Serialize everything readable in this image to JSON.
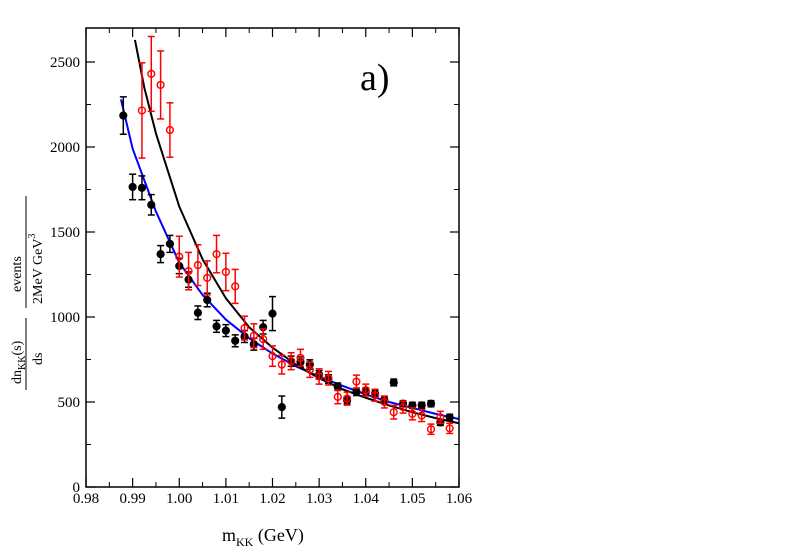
{
  "chart_data": {
    "type": "scatter",
    "title": "",
    "panel_label": "a)",
    "xlabel": {
      "main": "m",
      "sub": "KK",
      "unit": " (GeV)"
    },
    "ylabel": {
      "left_num": "dn",
      "left_num_sub": "KK",
      "left_num_tail": "(s)",
      "left_den": "ds",
      "right_num": "events",
      "right_den": "2MeV GeV",
      "right_den_sup": "3"
    },
    "xlim": [
      0.98,
      1.06
    ],
    "ylim": [
      0,
      2700
    ],
    "x_ticks": [
      0.98,
      0.99,
      1.0,
      1.01,
      1.02,
      1.03,
      1.04,
      1.05,
      1.06
    ],
    "x_tick_labels": [
      "0.98",
      "0.99",
      "1.00",
      "1.01",
      "1.02",
      "1.03",
      "1.04",
      "1.05",
      "1.06"
    ],
    "y_ticks": [
      0,
      500,
      1000,
      1500,
      2000,
      2500
    ],
    "y_tick_labels": [
      "0",
      "500",
      "1000",
      "1500",
      "2000",
      "2500"
    ],
    "grid": false,
    "series": [
      {
        "name": "black data",
        "kind": "points",
        "marker": "filled-circle",
        "color": "#000000",
        "points": [
          [
            0.988,
            2185,
            110
          ],
          [
            0.99,
            1765,
            75
          ],
          [
            0.992,
            1760,
            70
          ],
          [
            0.994,
            1660,
            60
          ],
          [
            0.996,
            1370,
            50
          ],
          [
            0.998,
            1430,
            50
          ],
          [
            1.0,
            1300,
            45
          ],
          [
            1.002,
            1220,
            45
          ],
          [
            1.004,
            1025,
            40
          ],
          [
            1.006,
            1100,
            40
          ],
          [
            1.008,
            945,
            35
          ],
          [
            1.01,
            920,
            35
          ],
          [
            1.012,
            860,
            35
          ],
          [
            1.014,
            885,
            35
          ],
          [
            1.016,
            840,
            35
          ],
          [
            1.018,
            940,
            40
          ],
          [
            1.02,
            1020,
            100
          ],
          [
            1.022,
            470,
            65
          ],
          [
            1.024,
            740,
            30
          ],
          [
            1.026,
            735,
            30
          ],
          [
            1.028,
            720,
            28
          ],
          [
            1.03,
            660,
            25
          ],
          [
            1.032,
            635,
            25
          ],
          [
            1.034,
            590,
            22
          ],
          [
            1.036,
            510,
            22
          ],
          [
            1.038,
            560,
            22
          ],
          [
            1.04,
            560,
            22
          ],
          [
            1.042,
            550,
            22
          ],
          [
            1.044,
            510,
            20
          ],
          [
            1.046,
            615,
            20
          ],
          [
            1.048,
            490,
            18
          ],
          [
            1.05,
            480,
            18
          ],
          [
            1.052,
            480,
            18
          ],
          [
            1.054,
            490,
            18
          ],
          [
            1.056,
            380,
            18
          ],
          [
            1.058,
            410,
            18
          ]
        ]
      },
      {
        "name": "red data",
        "kind": "points",
        "marker": "open-circle",
        "color": "#ff0000",
        "points": [
          [
            0.992,
            2215,
            280
          ],
          [
            0.994,
            2430,
            220
          ],
          [
            0.996,
            2365,
            200
          ],
          [
            0.998,
            2100,
            160
          ],
          [
            1.0,
            1355,
            120
          ],
          [
            1.002,
            1270,
            110
          ],
          [
            1.004,
            1305,
            120
          ],
          [
            1.006,
            1230,
            100
          ],
          [
            1.008,
            1370,
            110
          ],
          [
            1.01,
            1265,
            110
          ],
          [
            1.012,
            1180,
            100
          ],
          [
            1.014,
            935,
            70
          ],
          [
            1.016,
            890,
            70
          ],
          [
            1.018,
            870,
            60
          ],
          [
            1.02,
            770,
            60
          ],
          [
            1.022,
            720,
            55
          ],
          [
            1.024,
            740,
            50
          ],
          [
            1.026,
            760,
            50
          ],
          [
            1.028,
            690,
            45
          ],
          [
            1.03,
            650,
            45
          ],
          [
            1.032,
            640,
            40
          ],
          [
            1.034,
            530,
            40
          ],
          [
            1.036,
            520,
            38
          ],
          [
            1.038,
            620,
            38
          ],
          [
            1.04,
            570,
            35
          ],
          [
            1.042,
            540,
            35
          ],
          [
            1.044,
            500,
            35
          ],
          [
            1.046,
            440,
            40
          ],
          [
            1.048,
            470,
            35
          ],
          [
            1.05,
            430,
            35
          ],
          [
            1.052,
            420,
            35
          ],
          [
            1.054,
            340,
            30
          ],
          [
            1.056,
            410,
            35
          ],
          [
            1.058,
            345,
            30
          ]
        ]
      },
      {
        "name": "blue fit",
        "kind": "line",
        "color": "#0000ff",
        "points": [
          [
            0.9875,
            2280
          ],
          [
            0.99,
            1990
          ],
          [
            0.995,
            1620
          ],
          [
            1.0,
            1320
          ],
          [
            1.005,
            1130
          ],
          [
            1.01,
            985
          ],
          [
            1.015,
            875
          ],
          [
            1.02,
            785
          ],
          [
            1.025,
            710
          ],
          [
            1.03,
            650
          ],
          [
            1.035,
            595
          ],
          [
            1.04,
            545
          ],
          [
            1.045,
            500
          ],
          [
            1.05,
            465
          ],
          [
            1.055,
            430
          ],
          [
            1.06,
            400
          ]
        ]
      },
      {
        "name": "black fit",
        "kind": "line",
        "color": "#000000",
        "points": [
          [
            0.9905,
            2630
          ],
          [
            0.9925,
            2350
          ],
          [
            0.995,
            2080
          ],
          [
            1.0,
            1650
          ],
          [
            1.005,
            1340
          ],
          [
            1.01,
            1110
          ],
          [
            1.015,
            940
          ],
          [
            1.02,
            820
          ],
          [
            1.025,
            720
          ],
          [
            1.03,
            640
          ],
          [
            1.035,
            575
          ],
          [
            1.04,
            525
          ],
          [
            1.045,
            480
          ],
          [
            1.05,
            440
          ],
          [
            1.055,
            405
          ],
          [
            1.06,
            375
          ]
        ]
      }
    ]
  }
}
